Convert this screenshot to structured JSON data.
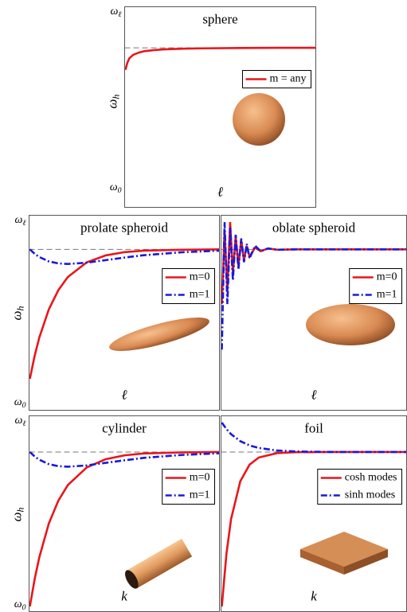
{
  "chart_data": [
    {
      "type": "line",
      "title": "sphere",
      "xlabel": "ℓ",
      "ylabel": "ωh",
      "xlim": [
        0,
        10
      ],
      "ylim": [
        0,
        1
      ],
      "yticks": [
        {
          "value": 0,
          "label": "ω0"
        },
        {
          "value": 1,
          "label": "ωℓ"
        }
      ],
      "asymptote": 0.805,
      "x": [
        0,
        0.1,
        0.2,
        0.4,
        0.7,
        1,
        1.5,
        2,
        3,
        4,
        6,
        8,
        10
      ],
      "series": [
        {
          "name": "m = any",
          "color": "#e8161b",
          "dash": "solid",
          "values": [
            0.68,
            0.72,
            0.745,
            0.765,
            0.778,
            0.786,
            0.792,
            0.796,
            0.8,
            0.802,
            0.804,
            0.805,
            0.805
          ]
        }
      ]
    },
    {
      "type": "line",
      "title": "prolate spheroid",
      "xlabel": "ℓ",
      "ylabel": "ωh",
      "xlim": [
        0,
        10
      ],
      "ylim": [
        0,
        1
      ],
      "yticks": [
        {
          "value": 0,
          "label": "ω0"
        },
        {
          "value": 1,
          "label": "ωℓ"
        }
      ],
      "asymptote": 0.85,
      "x": [
        0,
        0.25,
        0.5,
        1,
        1.5,
        2,
        3,
        4,
        5,
        6,
        8,
        10
      ],
      "series": [
        {
          "name": "m=0",
          "color": "#e8161b",
          "dash": "solid",
          "values": [
            0.14,
            0.265,
            0.367,
            0.521,
            0.626,
            0.698,
            0.779,
            0.817,
            0.835,
            0.843,
            0.848,
            0.85
          ]
        },
        {
          "name": "m=1",
          "color": "#1a1ad8",
          "dash": "dashdot",
          "values": [
            0.85,
            0.826,
            0.808,
            0.784,
            0.773,
            0.77,
            0.777,
            0.791,
            0.805,
            0.818,
            0.834,
            0.843
          ]
        }
      ]
    },
    {
      "type": "line",
      "title": "oblate spheroid",
      "xlabel": "ℓ",
      "xlim": [
        0,
        10
      ],
      "ylim": [
        0,
        1
      ],
      "asymptote": 0.85,
      "x": [
        0,
        0.15,
        0.3,
        0.45,
        0.6,
        0.75,
        0.9,
        1.05,
        1.2,
        1.35,
        1.5,
        1.8,
        2.1,
        2.5,
        3,
        4,
        6,
        10
      ],
      "series": [
        {
          "name": "m=0",
          "color": "#e8161b",
          "dash": "solid",
          "values": [
            0.55,
            0.95,
            0.62,
            1.0,
            0.72,
            0.92,
            0.76,
            0.9,
            0.79,
            0.87,
            0.81,
            0.86,
            0.84,
            0.855,
            0.848,
            0.85,
            0.85,
            0.85
          ]
        },
        {
          "name": "m=1",
          "color": "#1a1ad8",
          "dash": "dashdot",
          "values": [
            0.3,
            1.0,
            0.55,
            0.97,
            0.68,
            0.93,
            0.74,
            0.91,
            0.78,
            0.88,
            0.8,
            0.87,
            0.84,
            0.855,
            0.848,
            0.85,
            0.85,
            0.85
          ]
        }
      ]
    },
    {
      "type": "line",
      "title": "cylinder",
      "xlabel": "k",
      "ylabel": "ωh",
      "xlim": [
        0,
        10
      ],
      "ylim": [
        0,
        1
      ],
      "yticks": [
        {
          "value": 0,
          "label": "ω0"
        },
        {
          "value": 1,
          "label": "ωℓ"
        }
      ],
      "asymptote": 0.84,
      "x": [
        0,
        0.25,
        0.5,
        1,
        1.5,
        2,
        3,
        4,
        5,
        6,
        8,
        10
      ],
      "series": [
        {
          "name": "m=0",
          "color": "#e8161b",
          "dash": "solid",
          "values": [
            0,
            0.147,
            0.268,
            0.451,
            0.575,
            0.66,
            0.756,
            0.801,
            0.822,
            0.832,
            0.838,
            0.84
          ]
        },
        {
          "name": "m=1",
          "color": "#1a1ad8",
          "dash": "dashdot",
          "values": [
            0.84,
            0.816,
            0.798,
            0.774,
            0.763,
            0.76,
            0.767,
            0.781,
            0.795,
            0.808,
            0.824,
            0.833
          ]
        }
      ]
    },
    {
      "type": "line",
      "title": "foil",
      "xlabel": "k",
      "xlim": [
        0,
        10
      ],
      "ylim": [
        0,
        1
      ],
      "asymptote": 0.84,
      "x": [
        0,
        0.25,
        0.5,
        1,
        1.5,
        2,
        3,
        4,
        6,
        10
      ],
      "series": [
        {
          "name": "cosh modes",
          "color": "#e8161b",
          "dash": "solid",
          "values": [
            0,
            0.286,
            0.475,
            0.681,
            0.771,
            0.81,
            0.834,
            0.839,
            0.84,
            0.84
          ]
        },
        {
          "name": "sinh modes",
          "color": "#1a1ad8",
          "dash": "dashdot",
          "values": [
            1.0,
            0.965,
            0.937,
            0.899,
            0.876,
            0.862,
            0.848,
            0.843,
            0.84,
            0.84
          ]
        }
      ]
    }
  ]
}
